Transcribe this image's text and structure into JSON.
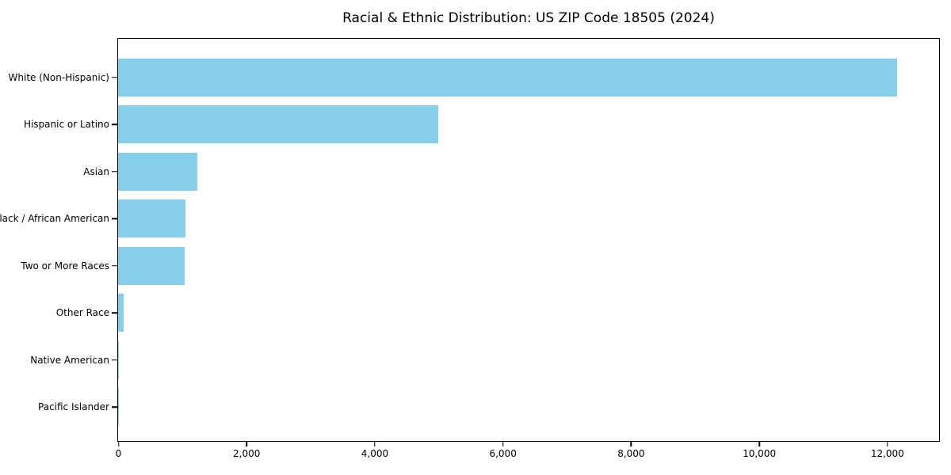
{
  "title": "Racial & Ethnic Distribution: US ZIP Code 18505 (2024)",
  "colors": {
    "bar": "#87CEEB",
    "axis": "#000000",
    "background": "#ffffff",
    "text": "#000000"
  },
  "chart_data": {
    "type": "bar",
    "orientation": "horizontal",
    "title": "Racial & Ethnic Distribution: US ZIP Code 18505 (2024)",
    "categories": [
      "White (Non-Hispanic)",
      "Hispanic or Latino",
      "Asian",
      "Black / African American",
      "Two or More Races",
      "Other Race",
      "Native American",
      "Pacific Islander"
    ],
    "values": [
      12160,
      5000,
      1240,
      1055,
      1040,
      90,
      15,
      5
    ],
    "xlabel": "",
    "ylabel": "",
    "xlim": [
      0,
      12800
    ],
    "xticks": [
      0,
      2000,
      4000,
      6000,
      8000,
      10000,
      12000
    ],
    "xtick_labels": [
      "0",
      "2,000",
      "4,000",
      "6,000",
      "8,000",
      "10,000",
      "12,000"
    ],
    "bar_color": "#87CEEB",
    "grid": false,
    "legend": null
  }
}
